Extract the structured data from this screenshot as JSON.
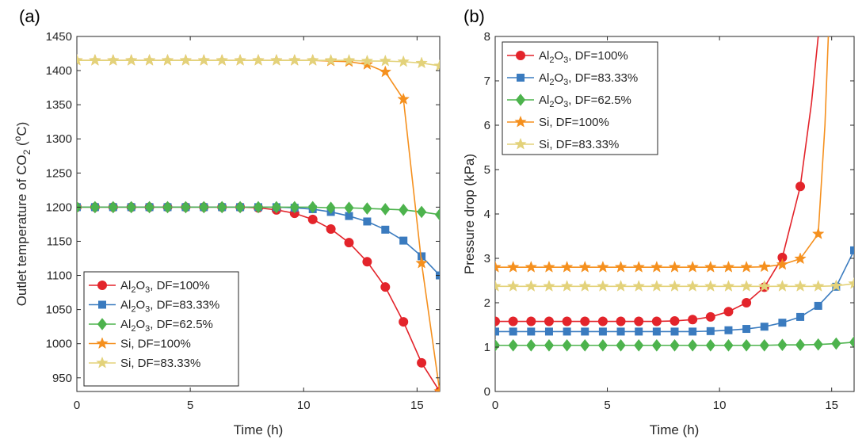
{
  "chart_data": [
    {
      "type": "line",
      "panel_label": "(a)",
      "xlabel": "Time (h)",
      "ylabel": {
        "pre": "Outlet temperature of CO",
        "sub": "2",
        "mid": " (",
        "sup": "o",
        "post": "C)"
      },
      "xlim": [
        0,
        16
      ],
      "ylim": [
        930,
        1450
      ],
      "xticks": [
        0,
        5,
        10,
        15
      ],
      "yticks": [
        950,
        1000,
        1050,
        1100,
        1150,
        1200,
        1250,
        1300,
        1350,
        1400,
        1450
      ],
      "grid": false,
      "legend_position": "bottom-left",
      "x": [
        0,
        0.8,
        1.6,
        2.4,
        3.2,
        4.0,
        4.8,
        5.6,
        6.4,
        7.2,
        8.0,
        8.8,
        9.6,
        10.4,
        11.2,
        12.0,
        12.8,
        13.6,
        14.4,
        15.2,
        16.0
      ],
      "series": [
        {
          "name": {
            "pre": "Al",
            "sub1": "2",
            "mid": "O",
            "sub2": "3",
            "post": ", DF=100%"
          },
          "color": "#e3242b",
          "marker": "circle",
          "values": [
            1200,
            1200,
            1200,
            1200,
            1200,
            1200,
            1200,
            1200,
            1200,
            1200,
            1199,
            1196,
            1191,
            1182,
            1168,
            1148,
            1120,
            1083,
            1032,
            972,
            930
          ]
        },
        {
          "name": {
            "pre": "Al",
            "sub1": "2",
            "mid": "O",
            "sub2": "3",
            "post": ", DF=83.33%"
          },
          "color": "#3a7bbf",
          "marker": "square",
          "values": [
            1200,
            1200,
            1200,
            1200,
            1200,
            1200,
            1200,
            1200,
            1200,
            1200,
            1200,
            1200,
            1199,
            1197,
            1193,
            1187,
            1179,
            1167,
            1151,
            1128,
            1100
          ]
        },
        {
          "name": {
            "pre": "Al",
            "sub1": "2",
            "mid": "O",
            "sub2": "3",
            "post": ", DF=62.5%"
          },
          "color": "#4db34d",
          "marker": "diamond",
          "values": [
            1200,
            1200,
            1200,
            1200,
            1200,
            1200,
            1200,
            1200,
            1200,
            1200,
            1200,
            1200,
            1200,
            1200,
            1199,
            1199,
            1198,
            1197,
            1196,
            1193,
            1189
          ]
        },
        {
          "name": {
            "pre": "Si, DF=100%"
          },
          "color": "#f5901e",
          "marker": "star",
          "values": [
            1415,
            1415,
            1415,
            1415,
            1415,
            1415,
            1415,
            1415,
            1415,
            1415,
            1415,
            1415,
            1415,
            1415,
            1414,
            1413,
            1409,
            1398,
            1358,
            1118,
            930
          ]
        },
        {
          "name": {
            "pre": "Si, DF=83.33%"
          },
          "color": "#e3d27a",
          "marker": "star",
          "values": [
            1415,
            1415,
            1415,
            1415,
            1415,
            1415,
            1415,
            1415,
            1415,
            1415,
            1415,
            1415,
            1415,
            1415,
            1415,
            1415,
            1414,
            1414,
            1413,
            1411,
            1407
          ]
        }
      ]
    },
    {
      "type": "line",
      "panel_label": "(b)",
      "xlabel": "Time (h)",
      "ylabel": {
        "pre": "Pressure drop (kPa)"
      },
      "xlim": [
        0,
        16
      ],
      "ylim": [
        0,
        8
      ],
      "xticks": [
        0,
        5,
        10,
        15
      ],
      "yticks": [
        0,
        1,
        2,
        3,
        4,
        5,
        6,
        7,
        8
      ],
      "grid": false,
      "legend_position": "top-left",
      "x": [
        0,
        0.8,
        1.6,
        2.4,
        3.2,
        4.0,
        4.8,
        5.6,
        6.4,
        7.2,
        8.0,
        8.8,
        9.6,
        10.4,
        11.2,
        12.0,
        12.8,
        13.6,
        14.4,
        15.2,
        16.0
      ],
      "series": [
        {
          "name": {
            "pre": "Al",
            "sub1": "2",
            "mid": "O",
            "sub2": "3",
            "post": ", DF=100%"
          },
          "color": "#e3242b",
          "marker": "circle",
          "x": [
            0,
            0.8,
            1.6,
            2.4,
            3.2,
            4.0,
            4.8,
            5.6,
            6.4,
            7.2,
            8.0,
            8.8,
            9.6,
            10.4,
            11.2,
            12.0,
            12.8,
            13.6,
            14.1,
            14.4
          ],
          "values": [
            1.58,
            1.58,
            1.58,
            1.58,
            1.58,
            1.58,
            1.58,
            1.58,
            1.58,
            1.58,
            1.59,
            1.62,
            1.68,
            1.8,
            2.0,
            2.35,
            3.02,
            4.62,
            6.5,
            8.0
          ],
          "marker_count": 18
        },
        {
          "name": {
            "pre": "Al",
            "sub1": "2",
            "mid": "O",
            "sub2": "3",
            "post": ", DF=83.33%"
          },
          "color": "#3a7bbf",
          "marker": "square",
          "values": [
            1.35,
            1.35,
            1.35,
            1.35,
            1.35,
            1.35,
            1.35,
            1.35,
            1.35,
            1.35,
            1.35,
            1.35,
            1.36,
            1.38,
            1.41,
            1.46,
            1.55,
            1.68,
            1.93,
            2.36,
            3.18
          ]
        },
        {
          "name": {
            "pre": "Al",
            "sub1": "2",
            "mid": "O",
            "sub2": "3",
            "post": ", DF=62.5%"
          },
          "color": "#4db34d",
          "marker": "diamond",
          "values": [
            1.04,
            1.04,
            1.04,
            1.04,
            1.04,
            1.04,
            1.04,
            1.04,
            1.04,
            1.04,
            1.04,
            1.04,
            1.04,
            1.04,
            1.04,
            1.04,
            1.05,
            1.05,
            1.06,
            1.08,
            1.11
          ]
        },
        {
          "name": {
            "pre": "Si, DF=100%"
          },
          "color": "#f5901e",
          "marker": "star",
          "x": [
            0,
            0.8,
            1.6,
            2.4,
            3.2,
            4.0,
            4.8,
            5.6,
            6.4,
            7.2,
            8.0,
            8.8,
            9.6,
            10.4,
            11.2,
            12.0,
            12.8,
            13.6,
            14.4,
            14.7,
            14.85
          ],
          "values": [
            2.8,
            2.8,
            2.8,
            2.8,
            2.8,
            2.8,
            2.8,
            2.8,
            2.8,
            2.8,
            2.8,
            2.8,
            2.8,
            2.8,
            2.8,
            2.81,
            2.86,
            2.99,
            3.55,
            6.0,
            8.0
          ],
          "marker_count": 19
        },
        {
          "name": {
            "pre": "Si, DF=83.33%"
          },
          "color": "#e3d27a",
          "marker": "star",
          "values": [
            2.37,
            2.37,
            2.37,
            2.37,
            2.37,
            2.37,
            2.37,
            2.37,
            2.37,
            2.37,
            2.37,
            2.37,
            2.37,
            2.37,
            2.37,
            2.37,
            2.37,
            2.37,
            2.37,
            2.38,
            2.43
          ]
        }
      ]
    }
  ]
}
